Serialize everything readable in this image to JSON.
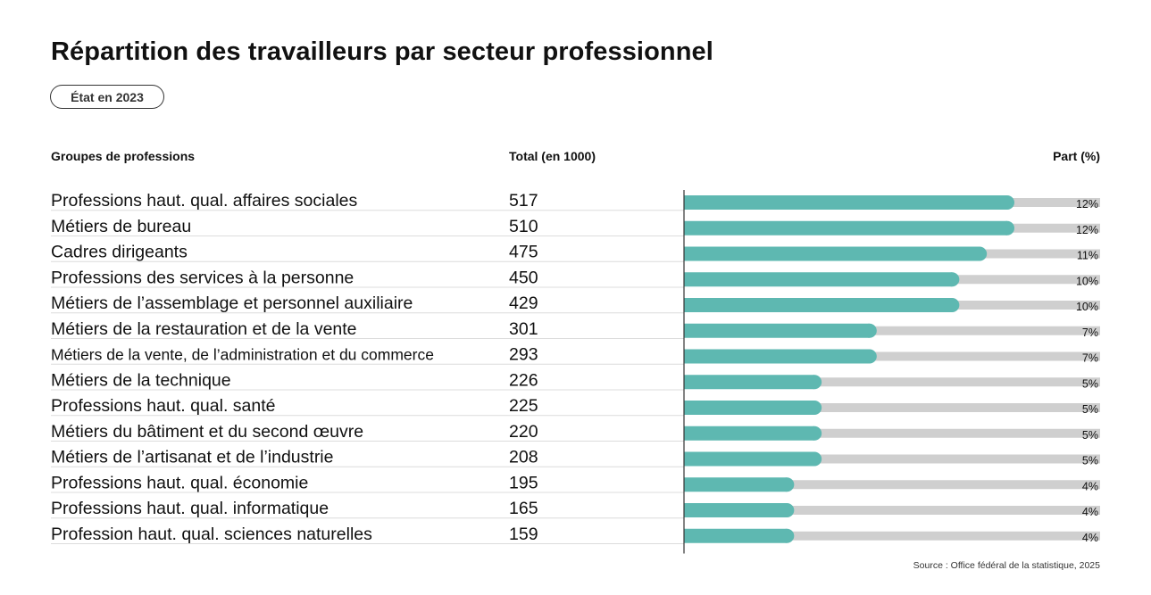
{
  "title": "Répartition des travailleurs par secteur professionnel",
  "badge": "État en 2023",
  "headers": {
    "group": "Groupes de professions",
    "total": "Total (en 1000)",
    "share": "Part (%)"
  },
  "source": "Source : Office fédéral de la statistique, 2025",
  "colors": {
    "bar": "#5eb8b1",
    "track": "#cfcfcf",
    "separator": "#dcdcdc",
    "axis": "#333333"
  },
  "chart_data": {
    "type": "bar",
    "orientation": "horizontal",
    "categories": [
      "Professions haut. qual. affaires sociales",
      "Métiers de bureau",
      "Cadres dirigeants",
      "Professions des services à la personne",
      "Métiers de l’assemblage et personnel auxiliaire",
      "Métiers de la restauration et de la vente",
      "Métiers de la vente, de l’administration et du commerce",
      "Métiers de la technique",
      "Professions haut. qual. santé",
      "Métiers du bâtiment et du second œuvre",
      "Métiers de l’artisanat et de l’industrie",
      "Professions haut. qual. économie",
      "Professions haut. qual. informatique",
      "Profession haut. qual. sciences naturelles"
    ],
    "totals": [
      517,
      510,
      475,
      450,
      429,
      301,
      293,
      226,
      225,
      220,
      208,
      195,
      165,
      159
    ],
    "values": [
      12,
      12,
      11,
      10,
      10,
      7,
      7,
      5,
      5,
      5,
      5,
      4,
      4,
      4
    ],
    "value_labels": [
      "12%",
      "12%",
      "11%",
      "10%",
      "10%",
      "7%",
      "7%",
      "5%",
      "5%",
      "5%",
      "5%",
      "4%",
      "4%",
      "4%"
    ],
    "xlim": [
      0,
      24
    ],
    "grid": false
  }
}
